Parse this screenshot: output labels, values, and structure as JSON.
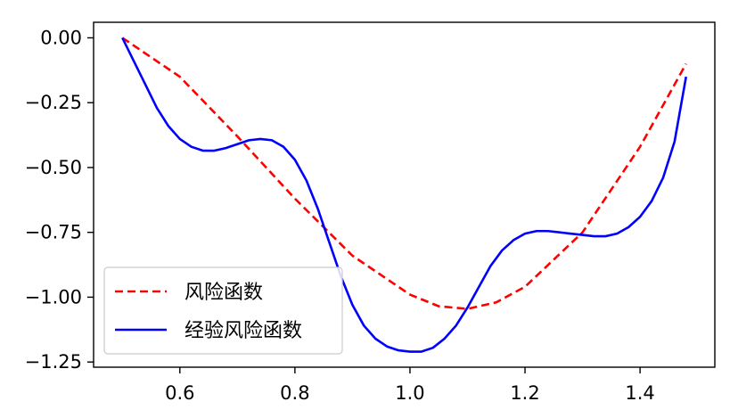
{
  "chart_data": {
    "type": "line",
    "xlim": [
      0.45,
      1.53
    ],
    "ylim": [
      -1.27,
      0.06
    ],
    "grid": false,
    "legend_position": "bottom-left",
    "x_ticks": [
      {
        "value": 0.6,
        "label": "0.6"
      },
      {
        "value": 0.8,
        "label": "0.8"
      },
      {
        "value": 1.0,
        "label": "1.0"
      },
      {
        "value": 1.2,
        "label": "1.2"
      },
      {
        "value": 1.4,
        "label": "1.4"
      }
    ],
    "y_ticks": [
      {
        "value": 0.0,
        "label": "0.00"
      },
      {
        "value": -0.25,
        "label": "−0.25"
      },
      {
        "value": -0.5,
        "label": "−0.50"
      },
      {
        "value": -0.75,
        "label": "−0.75"
      },
      {
        "value": -1.0,
        "label": "−1.00"
      },
      {
        "value": -1.25,
        "label": "−1.25"
      }
    ],
    "series": [
      {
        "name": "风险函数",
        "color": "#ff0000",
        "style": "dashed",
        "x": [
          0.5,
          0.6,
          0.7,
          0.8,
          0.9,
          1.0,
          1.05,
          1.1,
          1.15,
          1.2,
          1.3,
          1.4,
          1.48
        ],
        "y": [
          0.0,
          -0.15,
          -0.38,
          -0.62,
          -0.84,
          -0.99,
          -1.035,
          -1.045,
          -1.02,
          -0.96,
          -0.75,
          -0.42,
          -0.1
        ]
      },
      {
        "name": "经验风险函数",
        "color": "#0000ff",
        "style": "solid",
        "x": [
          0.5,
          0.52,
          0.54,
          0.56,
          0.58,
          0.6,
          0.62,
          0.64,
          0.66,
          0.68,
          0.7,
          0.72,
          0.74,
          0.76,
          0.78,
          0.8,
          0.82,
          0.84,
          0.86,
          0.88,
          0.9,
          0.92,
          0.94,
          0.96,
          0.98,
          1.0,
          1.02,
          1.04,
          1.06,
          1.08,
          1.1,
          1.12,
          1.14,
          1.16,
          1.18,
          1.2,
          1.22,
          1.24,
          1.26,
          1.28,
          1.3,
          1.32,
          1.34,
          1.36,
          1.38,
          1.4,
          1.42,
          1.44,
          1.46,
          1.48
        ],
        "y": [
          0.0,
          -0.09,
          -0.18,
          -0.27,
          -0.34,
          -0.39,
          -0.42,
          -0.435,
          -0.435,
          -0.425,
          -0.41,
          -0.395,
          -0.39,
          -0.395,
          -0.42,
          -0.47,
          -0.55,
          -0.66,
          -0.79,
          -0.92,
          -1.03,
          -1.11,
          -1.16,
          -1.19,
          -1.205,
          -1.21,
          -1.21,
          -1.195,
          -1.16,
          -1.11,
          -1.04,
          -0.96,
          -0.88,
          -0.82,
          -0.78,
          -0.755,
          -0.745,
          -0.745,
          -0.75,
          -0.755,
          -0.76,
          -0.765,
          -0.765,
          -0.755,
          -0.73,
          -0.69,
          -0.63,
          -0.54,
          -0.4,
          -0.15
        ]
      }
    ]
  }
}
